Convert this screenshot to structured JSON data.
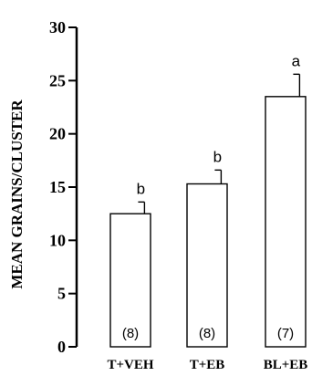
{
  "chart_data": {
    "type": "bar",
    "categories": [
      "T+VEH",
      "T+EB",
      "BL+EB"
    ],
    "values": [
      12.5,
      15.3,
      23.5
    ],
    "errors": [
      1.1,
      1.3,
      2.1
    ],
    "significance": [
      "b",
      "b",
      "a"
    ],
    "n_labels": [
      "(8)",
      "(8)",
      "(7)"
    ],
    "title": "",
    "xlabel": "",
    "ylabel": "MEAN GRAINS/CLUSTER",
    "ylim": [
      0,
      30
    ],
    "yticks": [
      0,
      5,
      10,
      15,
      20,
      25,
      30
    ],
    "ytick_labels": [
      "0",
      "5",
      "10",
      "15",
      "20",
      "25",
      "30"
    ],
    "bar_fill": "#ffffff",
    "bar_stroke": "#000000",
    "grid": false
  }
}
